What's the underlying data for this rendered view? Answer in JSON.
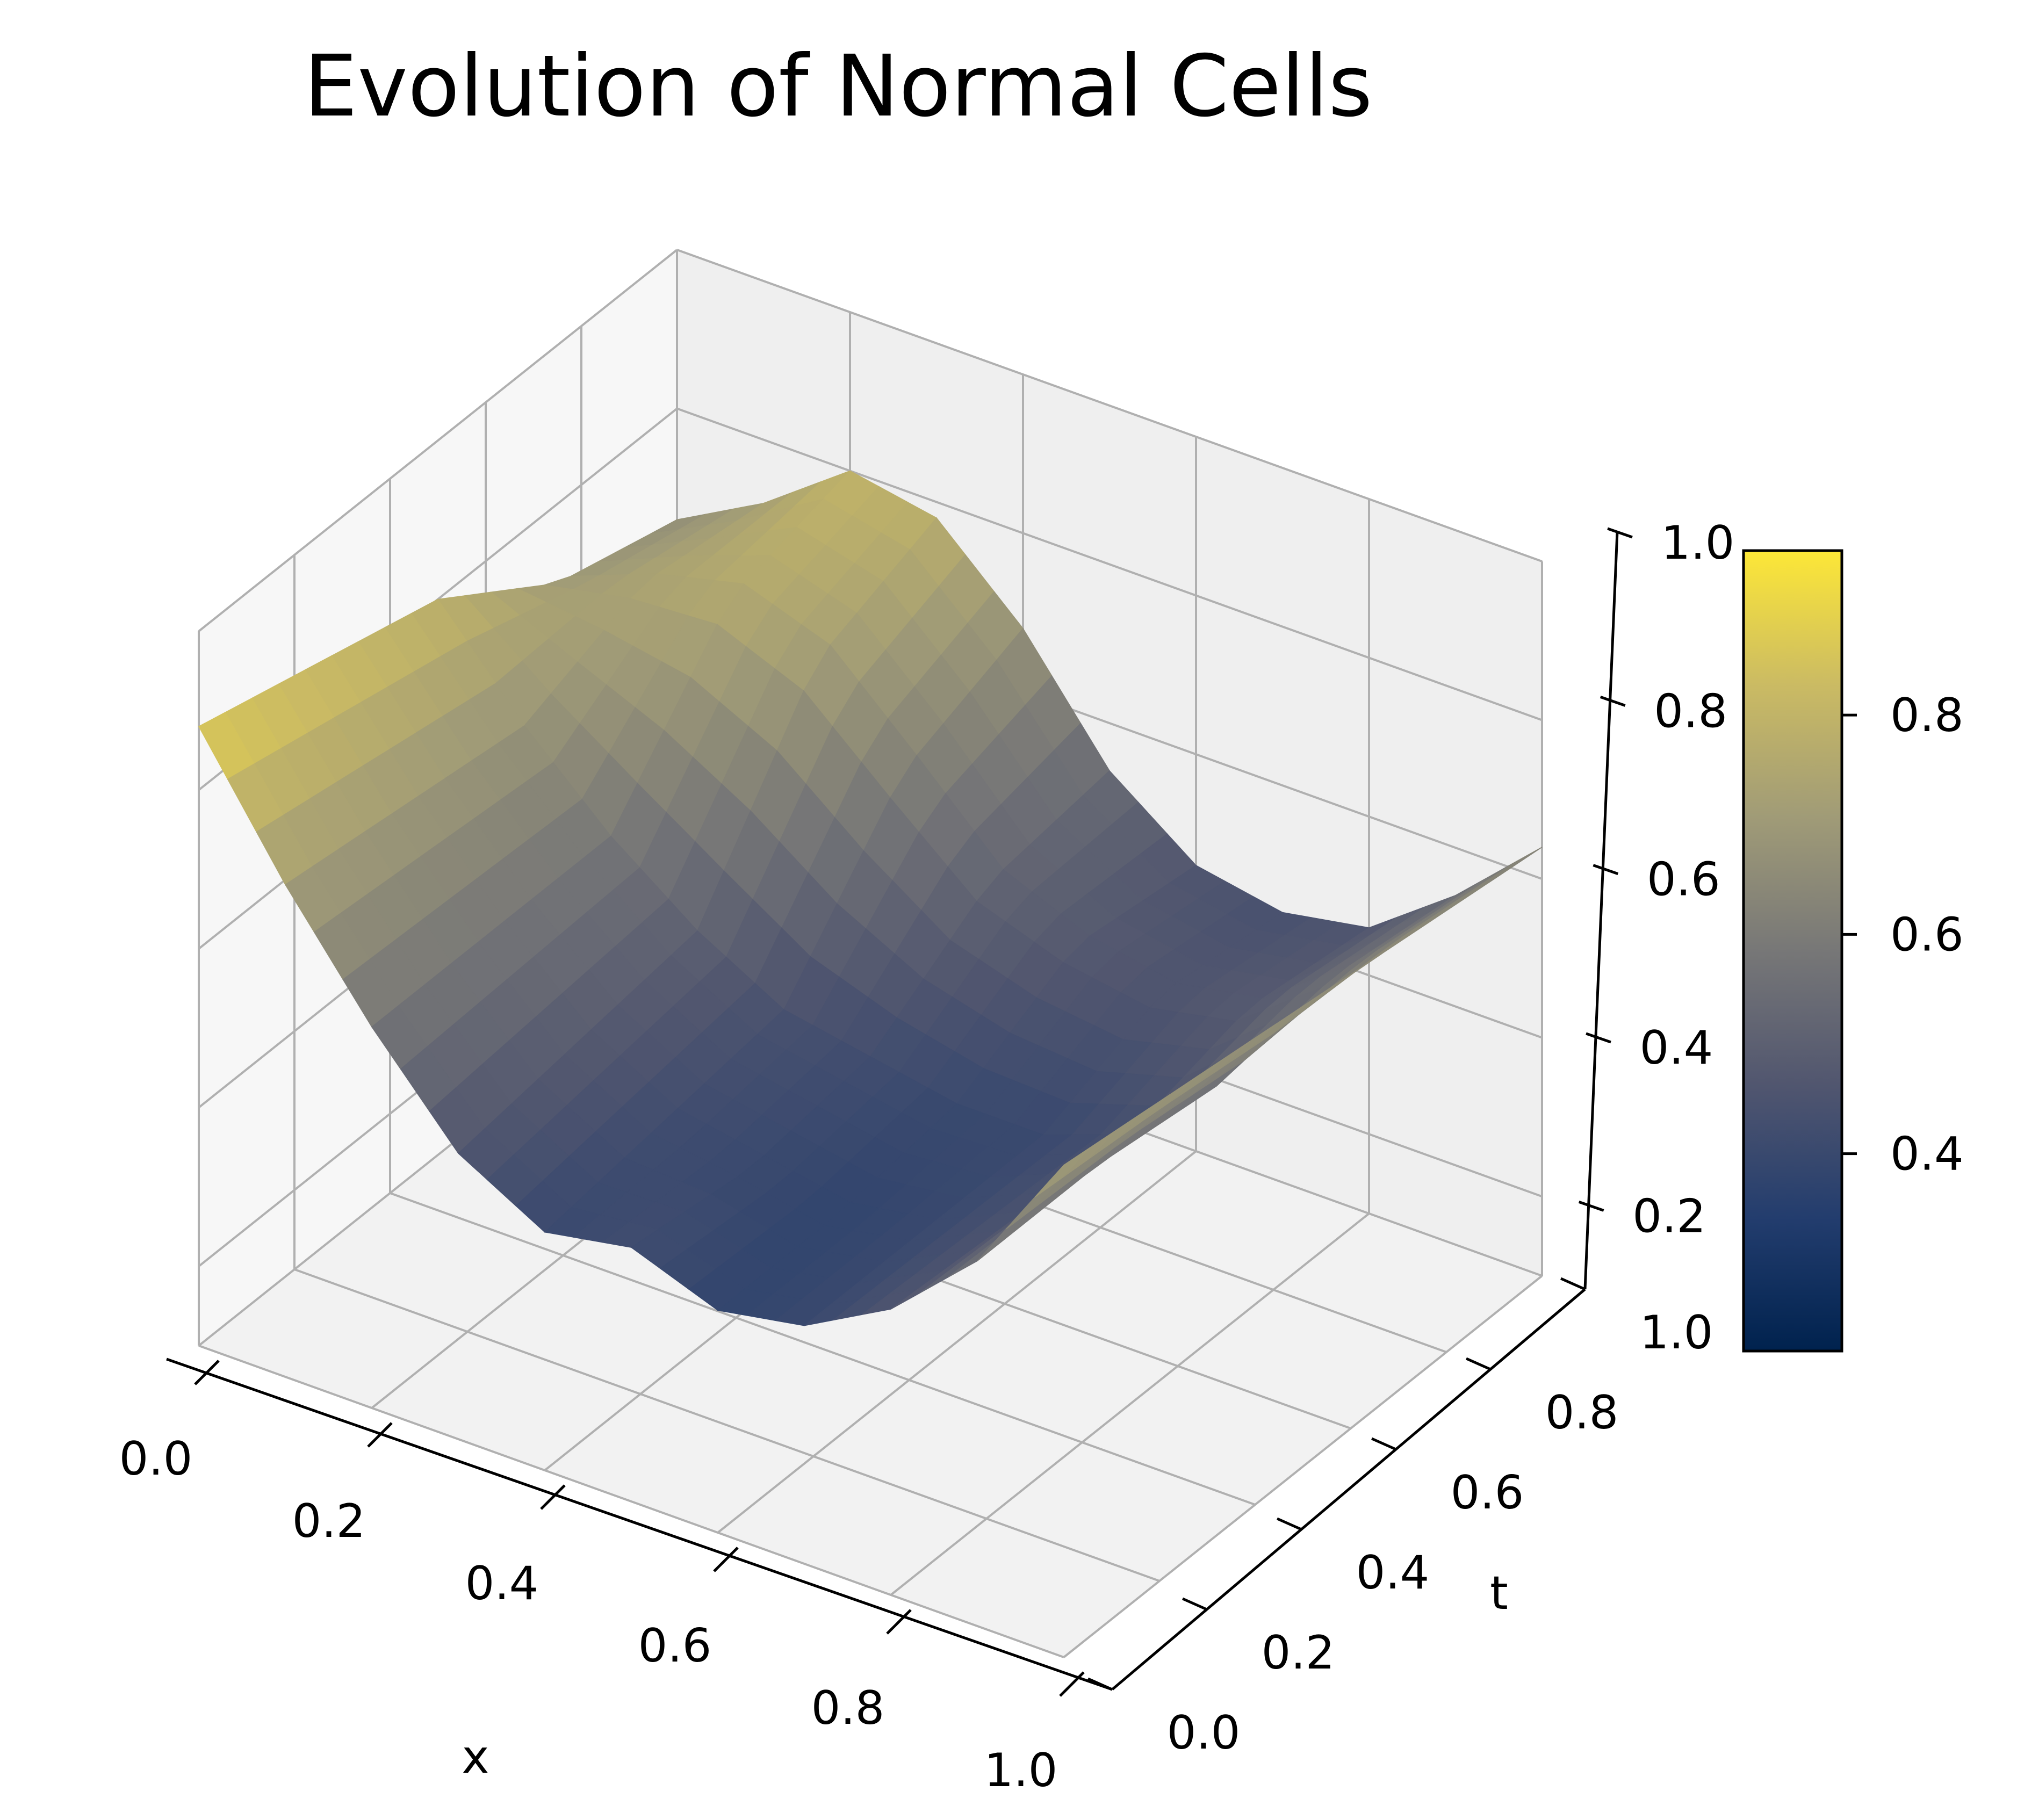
{
  "chart_data": {
    "type": "surface3d",
    "title": "Evolution of Normal Cells",
    "xlabel": "x",
    "ylabel": "t",
    "zlabel": "",
    "xlim": [
      0,
      1
    ],
    "ylim": [
      0,
      1
    ],
    "zlim": [
      0.1,
      1.0
    ],
    "x_ticks": [
      "0.0",
      "0.2",
      "0.4",
      "0.6",
      "0.8",
      "1.0"
    ],
    "y_ticks": [
      "0.0",
      "0.2",
      "0.4",
      "0.6",
      "0.8",
      "1.0"
    ],
    "z_ticks": [
      "0.2",
      "0.4",
      "0.6",
      "0.8",
      "1.0"
    ],
    "colormap": "cividis",
    "colormap_colors": [
      "#00224e",
      "#233d6e",
      "#51566f",
      "#777777",
      "#a09b77",
      "#cbbb63",
      "#fde737"
    ],
    "colorbar_range": [
      0.22,
      0.95
    ],
    "colorbar_ticks": [
      "0.4",
      "0.6",
      "0.8"
    ],
    "grid": true,
    "surface_samples": {
      "x": [
        0.0,
        0.1,
        0.2,
        0.3,
        0.4,
        0.5,
        0.6,
        0.7,
        0.8,
        0.9,
        1.0
      ],
      "t": [
        0.0,
        0.25,
        0.5,
        0.75,
        1.0
      ],
      "z": [
        [
          0.88,
          0.72,
          0.58,
          0.46,
          0.4,
          0.42,
          0.38,
          0.4,
          0.46,
          0.56,
          0.72
        ],
        [
          0.84,
          0.7,
          0.58,
          0.48,
          0.42,
          0.4,
          0.38,
          0.4,
          0.45,
          0.56,
          0.7
        ],
        [
          0.8,
          0.68,
          0.58,
          0.5,
          0.44,
          0.42,
          0.4,
          0.4,
          0.44,
          0.54,
          0.68
        ],
        [
          0.7,
          0.74,
          0.76,
          0.72,
          0.62,
          0.52,
          0.48,
          0.46,
          0.48,
          0.56,
          0.66
        ],
        [
          0.66,
          0.72,
          0.8,
          0.78,
          0.68,
          0.54,
          0.46,
          0.44,
          0.46,
          0.54,
          0.64
        ]
      ]
    }
  }
}
